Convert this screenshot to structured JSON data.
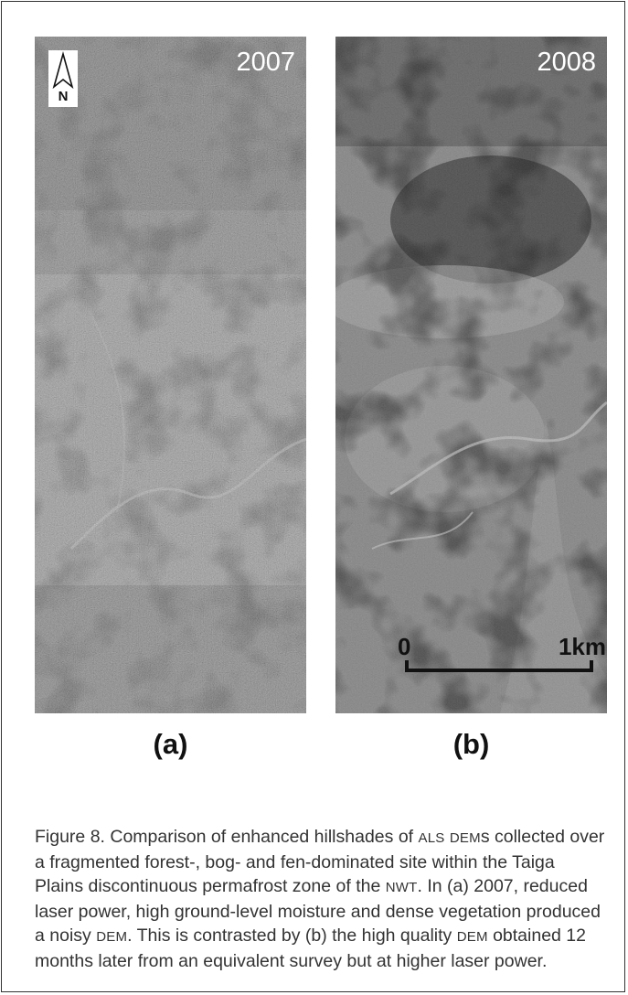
{
  "figure": {
    "panels": [
      {
        "year": "2007",
        "letter": "(a)"
      },
      {
        "year": "2008",
        "letter": "(b)"
      }
    ],
    "north_label": "N",
    "scale": {
      "start": "0",
      "end": "1km"
    },
    "caption": {
      "p1": "Figure 8. Comparison of enhanced hillshades of ",
      "als": "ALS",
      "p2": " ",
      "dems": "DEM",
      "p3": "s collected over a fragmented forest-, bog- and fen-dominated site within the Taiga Plains discontinuous permafrost zone of the ",
      "nwt": "NWT",
      "p4": ". In (a) 2007, reduced laser power, high ground-level moisture and dense vegetation produced a noisy ",
      "dem1": "DEM",
      "p5": ". This is contrasted by (b) the high quality ",
      "dem2": "DEM",
      "p6": " obtained 12 months later from an equivalent survey but at higher laser power."
    }
  }
}
